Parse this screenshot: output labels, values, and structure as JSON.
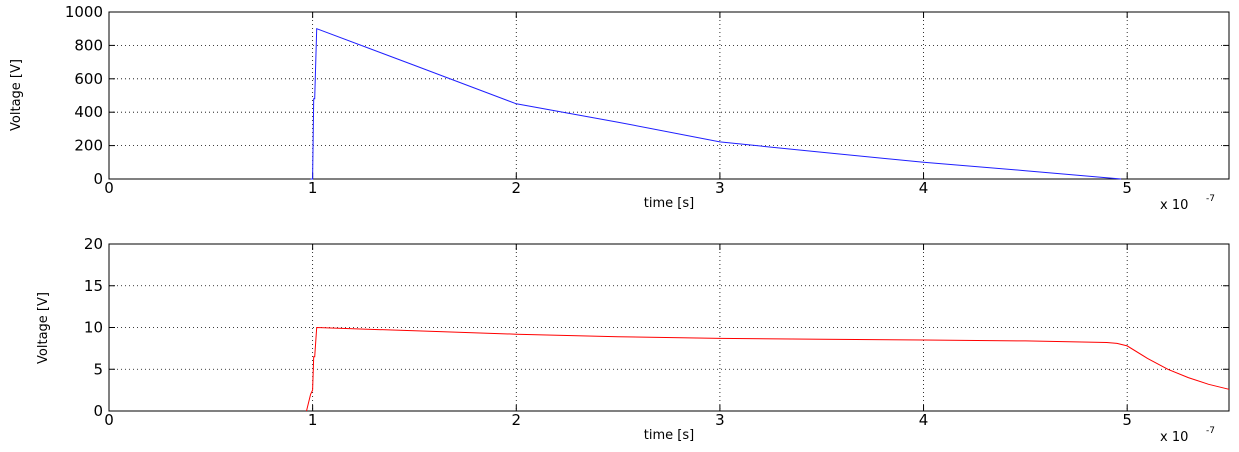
{
  "chart_data": [
    {
      "type": "line",
      "xlabel": "time [s]",
      "ylabel": "Voltage [V]",
      "x_exponent_label": "x 10",
      "x_exponent": "-7",
      "xlim": [
        0,
        5.5
      ],
      "ylim": [
        0,
        1000
      ],
      "grid": true,
      "xticks": [
        0,
        1,
        2,
        3,
        4,
        5
      ],
      "xtick_labels": [
        "0",
        "1",
        "2",
        "3",
        "4",
        "5"
      ],
      "yticks": [
        0,
        200,
        400,
        600,
        800,
        1000
      ],
      "ytick_labels": [
        "0",
        "200",
        "400",
        "600",
        "800",
        "1000"
      ],
      "series": [
        {
          "color": "#1f1fff",
          "x": [
            0.99,
            1.0,
            1.005,
            1.01,
            1.02,
            1.5,
            2.0,
            2.5,
            3.0,
            3.5,
            4.0,
            4.5,
            4.97
          ],
          "y": [
            0,
            0,
            480,
            480,
            900,
            680,
            450,
            340,
            222,
            160,
            100,
            50,
            0
          ]
        }
      ]
    },
    {
      "type": "line",
      "xlabel": "time [s]",
      "ylabel": "Voltage [V]",
      "x_exponent_label": "x 10",
      "x_exponent": "-7",
      "xlim": [
        0,
        5.5
      ],
      "ylim": [
        0,
        20
      ],
      "grid": true,
      "xticks": [
        0,
        1,
        2,
        3,
        4,
        5
      ],
      "xtick_labels": [
        "0",
        "1",
        "2",
        "3",
        "4",
        "5"
      ],
      "yticks": [
        0,
        5,
        10,
        15,
        20
      ],
      "ytick_labels": [
        "0",
        "5",
        "10",
        "15",
        "20"
      ],
      "series": [
        {
          "color": "#ff0000",
          "x": [
            0.97,
            0.99,
            1.0,
            1.005,
            1.01,
            1.02,
            1.5,
            2.0,
            2.5,
            3.0,
            3.5,
            4.0,
            4.5,
            4.9,
            4.95,
            5.0,
            5.1,
            5.2,
            5.3,
            5.4,
            5.5
          ],
          "y": [
            0,
            2,
            2.5,
            6.5,
            6.5,
            10,
            9.6,
            9.2,
            8.9,
            8.7,
            8.6,
            8.5,
            8.4,
            8.2,
            8.1,
            7.8,
            6.3,
            5.0,
            4.0,
            3.2,
            2.6
          ]
        }
      ]
    }
  ]
}
